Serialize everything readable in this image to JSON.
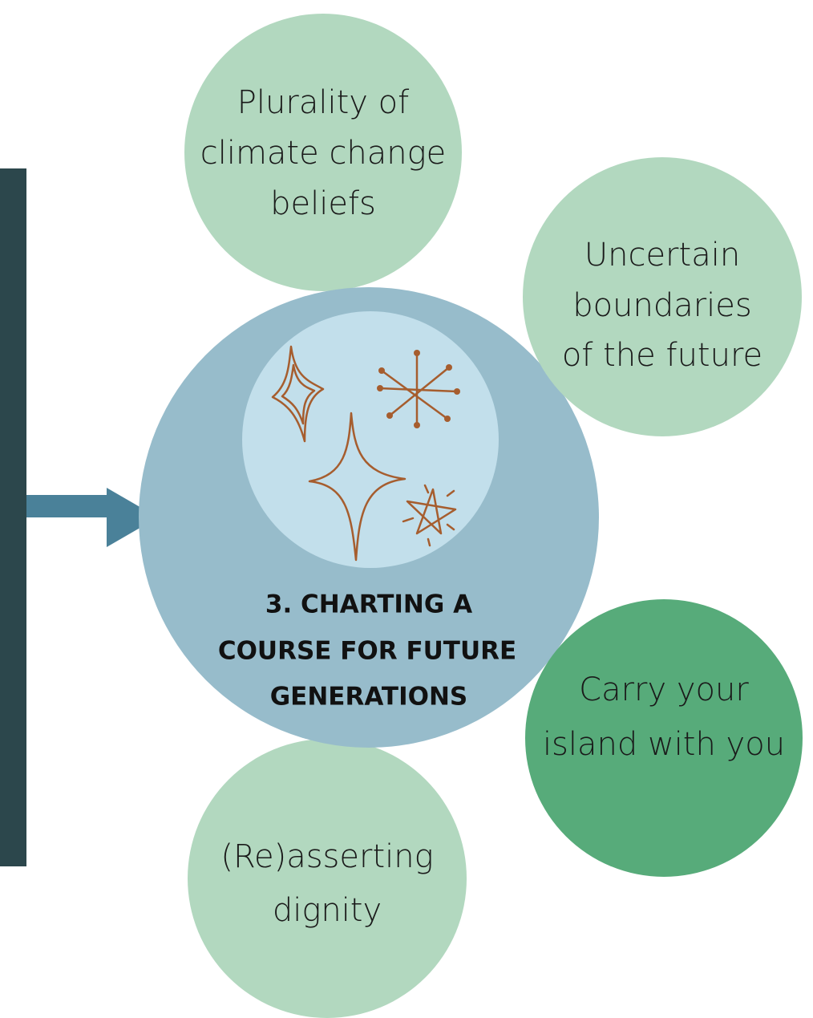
{
  "center": {
    "lines": [
      "3. CHARTING A",
      "COURSE FOR FUTURE",
      "GENERATIONS"
    ]
  },
  "nodes": [
    {
      "lines": [
        "Plurality of",
        "climate change",
        "beliefs"
      ]
    },
    {
      "lines": [
        "Uncertain",
        "boundaries",
        "of the future"
      ]
    },
    {
      "lines": [
        "Carry your",
        "island with you"
      ]
    },
    {
      "lines": [
        "(Re)asserting",
        "dignity"
      ]
    }
  ]
}
